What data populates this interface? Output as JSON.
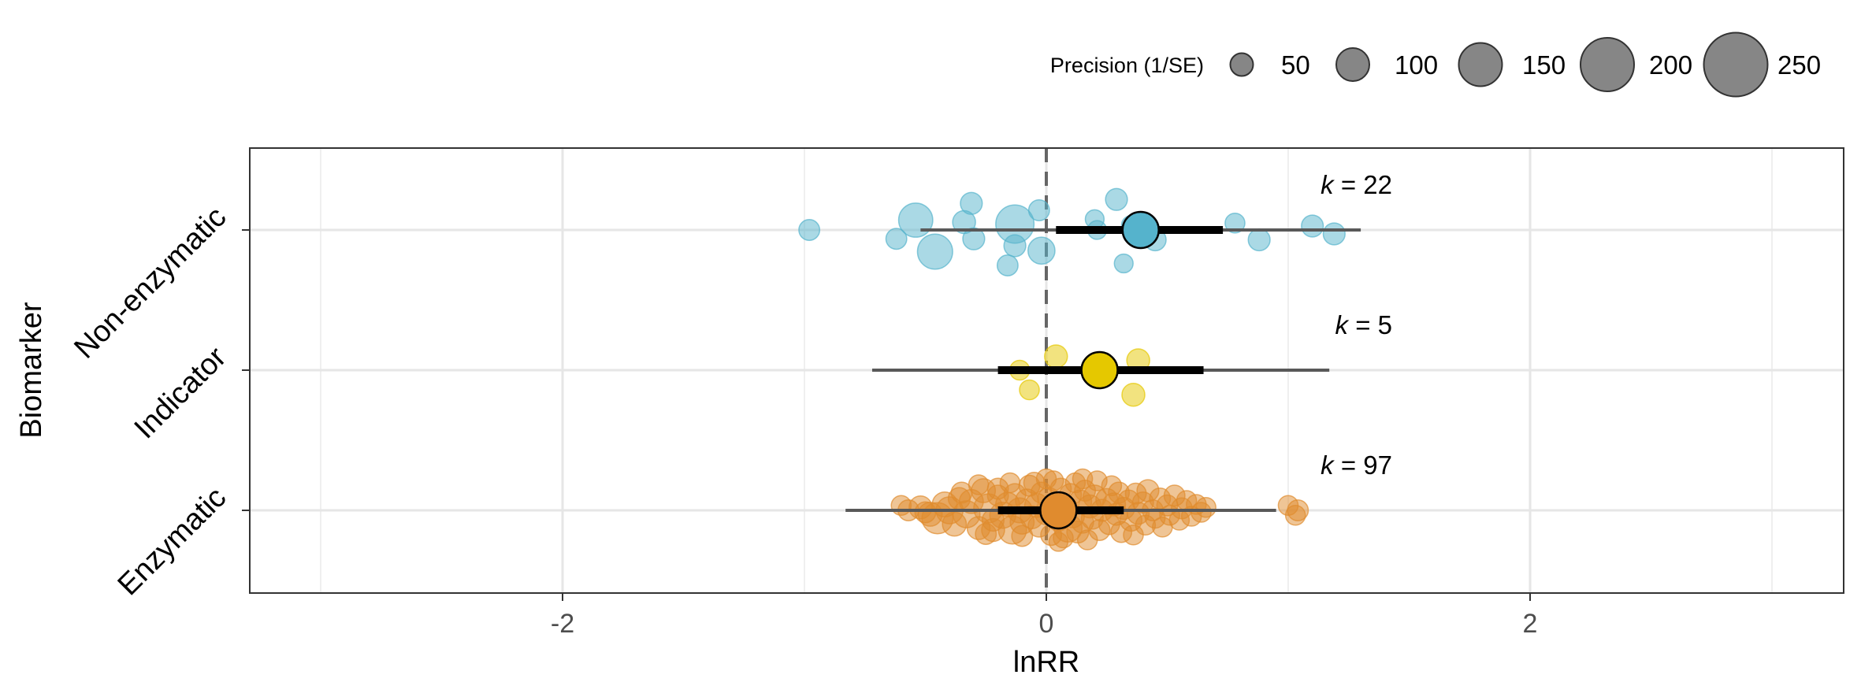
{
  "chart_data": {
    "type": "scatter",
    "subtype": "orchard plot",
    "xlabel": "lnRR",
    "ylabel": "Biomarker",
    "xlim": [
      -3.3,
      3.3
    ],
    "x_ticks": [
      -2,
      0,
      2
    ],
    "x_tick_labels": [
      "-2",
      "0",
      "2"
    ],
    "reference_line_x": 0,
    "grid": true,
    "legend": {
      "title": "Precision (1/SE)",
      "position": "top-right",
      "values": [
        50,
        100,
        150,
        200,
        250
      ],
      "labels": [
        "50",
        "100",
        "150",
        "200",
        "250"
      ],
      "color": "#808080"
    },
    "groups": [
      {
        "name": "Enzymatic",
        "k_prefix": "k",
        "k_text": " = 97",
        "k": 97,
        "color": "#E08B2E",
        "estimate": 0.05,
        "ci": [
          -0.2,
          0.32
        ],
        "pi": [
          -0.83,
          0.95
        ],
        "points": [
          [
            -0.57,
            0.0,
            40
          ],
          [
            -0.52,
            0.03,
            50
          ],
          [
            -0.48,
            -0.04,
            55
          ],
          [
            -0.45,
            -0.08,
            90
          ],
          [
            -0.42,
            0.06,
            60
          ],
          [
            -0.4,
            0.0,
            70
          ],
          [
            -0.38,
            -0.14,
            55
          ],
          [
            -0.36,
            0.12,
            45
          ],
          [
            -0.33,
            -0.04,
            70
          ],
          [
            -0.31,
            0.09,
            55
          ],
          [
            -0.28,
            -0.18,
            50
          ],
          [
            -0.26,
            0.2,
            55
          ],
          [
            -0.24,
            0.02,
            80
          ],
          [
            -0.22,
            -0.1,
            45
          ],
          [
            -0.2,
            0.15,
            40
          ],
          [
            -0.18,
            -0.05,
            65
          ],
          [
            -0.16,
            0.06,
            55
          ],
          [
            -0.14,
            -0.2,
            75
          ],
          [
            -0.13,
            0.16,
            45
          ],
          [
            -0.11,
            0.0,
            60
          ],
          [
            -0.1,
            -0.12,
            55
          ],
          [
            -0.08,
            0.1,
            50
          ],
          [
            -0.07,
            0.25,
            40
          ],
          [
            -0.06,
            -0.07,
            50
          ],
          [
            -0.04,
            0.05,
            55
          ],
          [
            -0.03,
            -0.16,
            45
          ],
          [
            -0.02,
            0.18,
            40
          ],
          [
            0.0,
            -0.03,
            50
          ],
          [
            0.01,
            0.12,
            45
          ],
          [
            0.02,
            -0.25,
            40
          ],
          [
            0.03,
            0.3,
            35
          ],
          [
            0.04,
            0.07,
            50
          ],
          [
            0.05,
            -0.1,
            45
          ],
          [
            0.06,
            0.22,
            40
          ],
          [
            0.07,
            -0.28,
            35
          ],
          [
            0.08,
            0.02,
            55
          ],
          [
            0.09,
            -0.18,
            75
          ],
          [
            0.1,
            0.16,
            45
          ],
          [
            0.11,
            -0.06,
            50
          ],
          [
            0.12,
            0.28,
            35
          ],
          [
            0.13,
            -0.22,
            45
          ],
          [
            0.14,
            0.09,
            50
          ],
          [
            0.15,
            -0.12,
            45
          ],
          [
            0.16,
            0.2,
            40
          ],
          [
            0.17,
            -0.3,
            35
          ],
          [
            0.18,
            0.04,
            50
          ],
          [
            0.19,
            -0.08,
            45
          ],
          [
            0.2,
            0.14,
            50
          ],
          [
            0.21,
            0.3,
            35
          ],
          [
            0.22,
            -0.2,
            40
          ],
          [
            0.23,
            0.0,
            45
          ],
          [
            0.25,
            0.11,
            45
          ],
          [
            0.26,
            -0.14,
            40
          ],
          [
            0.28,
            0.06,
            50
          ],
          [
            0.29,
            -0.04,
            45
          ],
          [
            0.3,
            0.18,
            40
          ],
          [
            0.31,
            -0.22,
            40
          ],
          [
            0.32,
            0.02,
            45
          ],
          [
            0.34,
            0.1,
            40
          ],
          [
            0.35,
            -0.1,
            45
          ],
          [
            0.37,
            0.17,
            40
          ],
          [
            0.38,
            -0.03,
            45
          ],
          [
            0.4,
            0.08,
            40
          ],
          [
            0.41,
            -0.15,
            35
          ],
          [
            0.42,
            0.2,
            45
          ],
          [
            0.44,
            0.0,
            40
          ],
          [
            0.45,
            -0.08,
            35
          ],
          [
            0.47,
            0.12,
            40
          ],
          [
            0.48,
            -0.17,
            35
          ],
          [
            0.5,
            0.05,
            40
          ],
          [
            0.51,
            -0.05,
            35
          ],
          [
            0.53,
            0.15,
            40
          ],
          [
            0.55,
            -0.1,
            35
          ],
          [
            0.56,
            0.02,
            40
          ],
          [
            0.58,
            0.1,
            35
          ],
          [
            0.6,
            -0.06,
            35
          ],
          [
            0.62,
            0.06,
            35
          ],
          [
            0.64,
            -0.02,
            35
          ],
          [
            0.66,
            0.03,
            35
          ],
          [
            -0.2,
            0.22,
            40
          ],
          [
            -0.25,
            -0.24,
            40
          ],
          [
            -0.05,
            0.28,
            40
          ],
          [
            -0.35,
            0.18,
            40
          ],
          [
            0.27,
            0.25,
            35
          ],
          [
            -0.1,
            -0.26,
            40
          ],
          [
            0.36,
            -0.25,
            35
          ],
          [
            -0.15,
            0.28,
            35
          ],
          [
            0.15,
            0.32,
            35
          ],
          [
            0.0,
            0.32,
            35
          ],
          [
            -0.28,
            0.26,
            35
          ],
          [
            1.0,
            0.05,
            35
          ],
          [
            1.03,
            -0.05,
            35
          ],
          [
            1.04,
            0.0,
            40
          ],
          [
            -0.6,
            0.05,
            35
          ],
          [
            -0.5,
            -0.02,
            40
          ],
          [
            -0.22,
            -0.2,
            50
          ],
          [
            0.05,
            -0.32,
            30
          ]
        ]
      },
      {
        "name": "Indicator",
        "k_prefix": "k",
        "k_text": " = 5",
        "k": 5,
        "color": "#E5C800",
        "estimate": 0.22,
        "ci": [
          -0.2,
          0.65
        ],
        "pi": [
          -0.72,
          1.17
        ],
        "points": [
          [
            0.04,
            0.14,
            50
          ],
          [
            -0.11,
            0.0,
            35
          ],
          [
            -0.07,
            -0.2,
            35
          ],
          [
            0.38,
            0.1,
            50
          ],
          [
            0.36,
            -0.25,
            50
          ]
        ]
      },
      {
        "name": "Non-enzymatic",
        "k_prefix": "k",
        "k_text": " = 22",
        "k": 22,
        "color": "#55B3CC",
        "estimate": 0.39,
        "ci": [
          0.04,
          0.73
        ],
        "pi": [
          -0.52,
          1.3
        ],
        "points": [
          [
            -0.98,
            0.0,
            40
          ],
          [
            -0.62,
            -0.09,
            40
          ],
          [
            -0.54,
            0.1,
            105
          ],
          [
            -0.46,
            -0.22,
            110
          ],
          [
            -0.34,
            0.08,
            50
          ],
          [
            -0.31,
            0.27,
            45
          ],
          [
            -0.3,
            -0.09,
            45
          ],
          [
            -0.16,
            -0.36,
            40
          ],
          [
            -0.13,
            -0.16,
            45
          ],
          [
            -0.13,
            0.06,
            125
          ],
          [
            -0.03,
            0.2,
            40
          ],
          [
            -0.02,
            -0.21,
            70
          ],
          [
            0.2,
            0.11,
            30
          ],
          [
            0.21,
            0.0,
            30
          ],
          [
            0.29,
            0.31,
            45
          ],
          [
            0.32,
            -0.34,
            30
          ],
          [
            0.45,
            -0.1,
            45
          ],
          [
            0.78,
            0.07,
            35
          ],
          [
            0.88,
            -0.1,
            45
          ],
          [
            1.1,
            0.04,
            45
          ],
          [
            1.19,
            -0.04,
            45
          ],
          [
            0.35,
            0.05,
            30
          ]
        ]
      }
    ]
  }
}
